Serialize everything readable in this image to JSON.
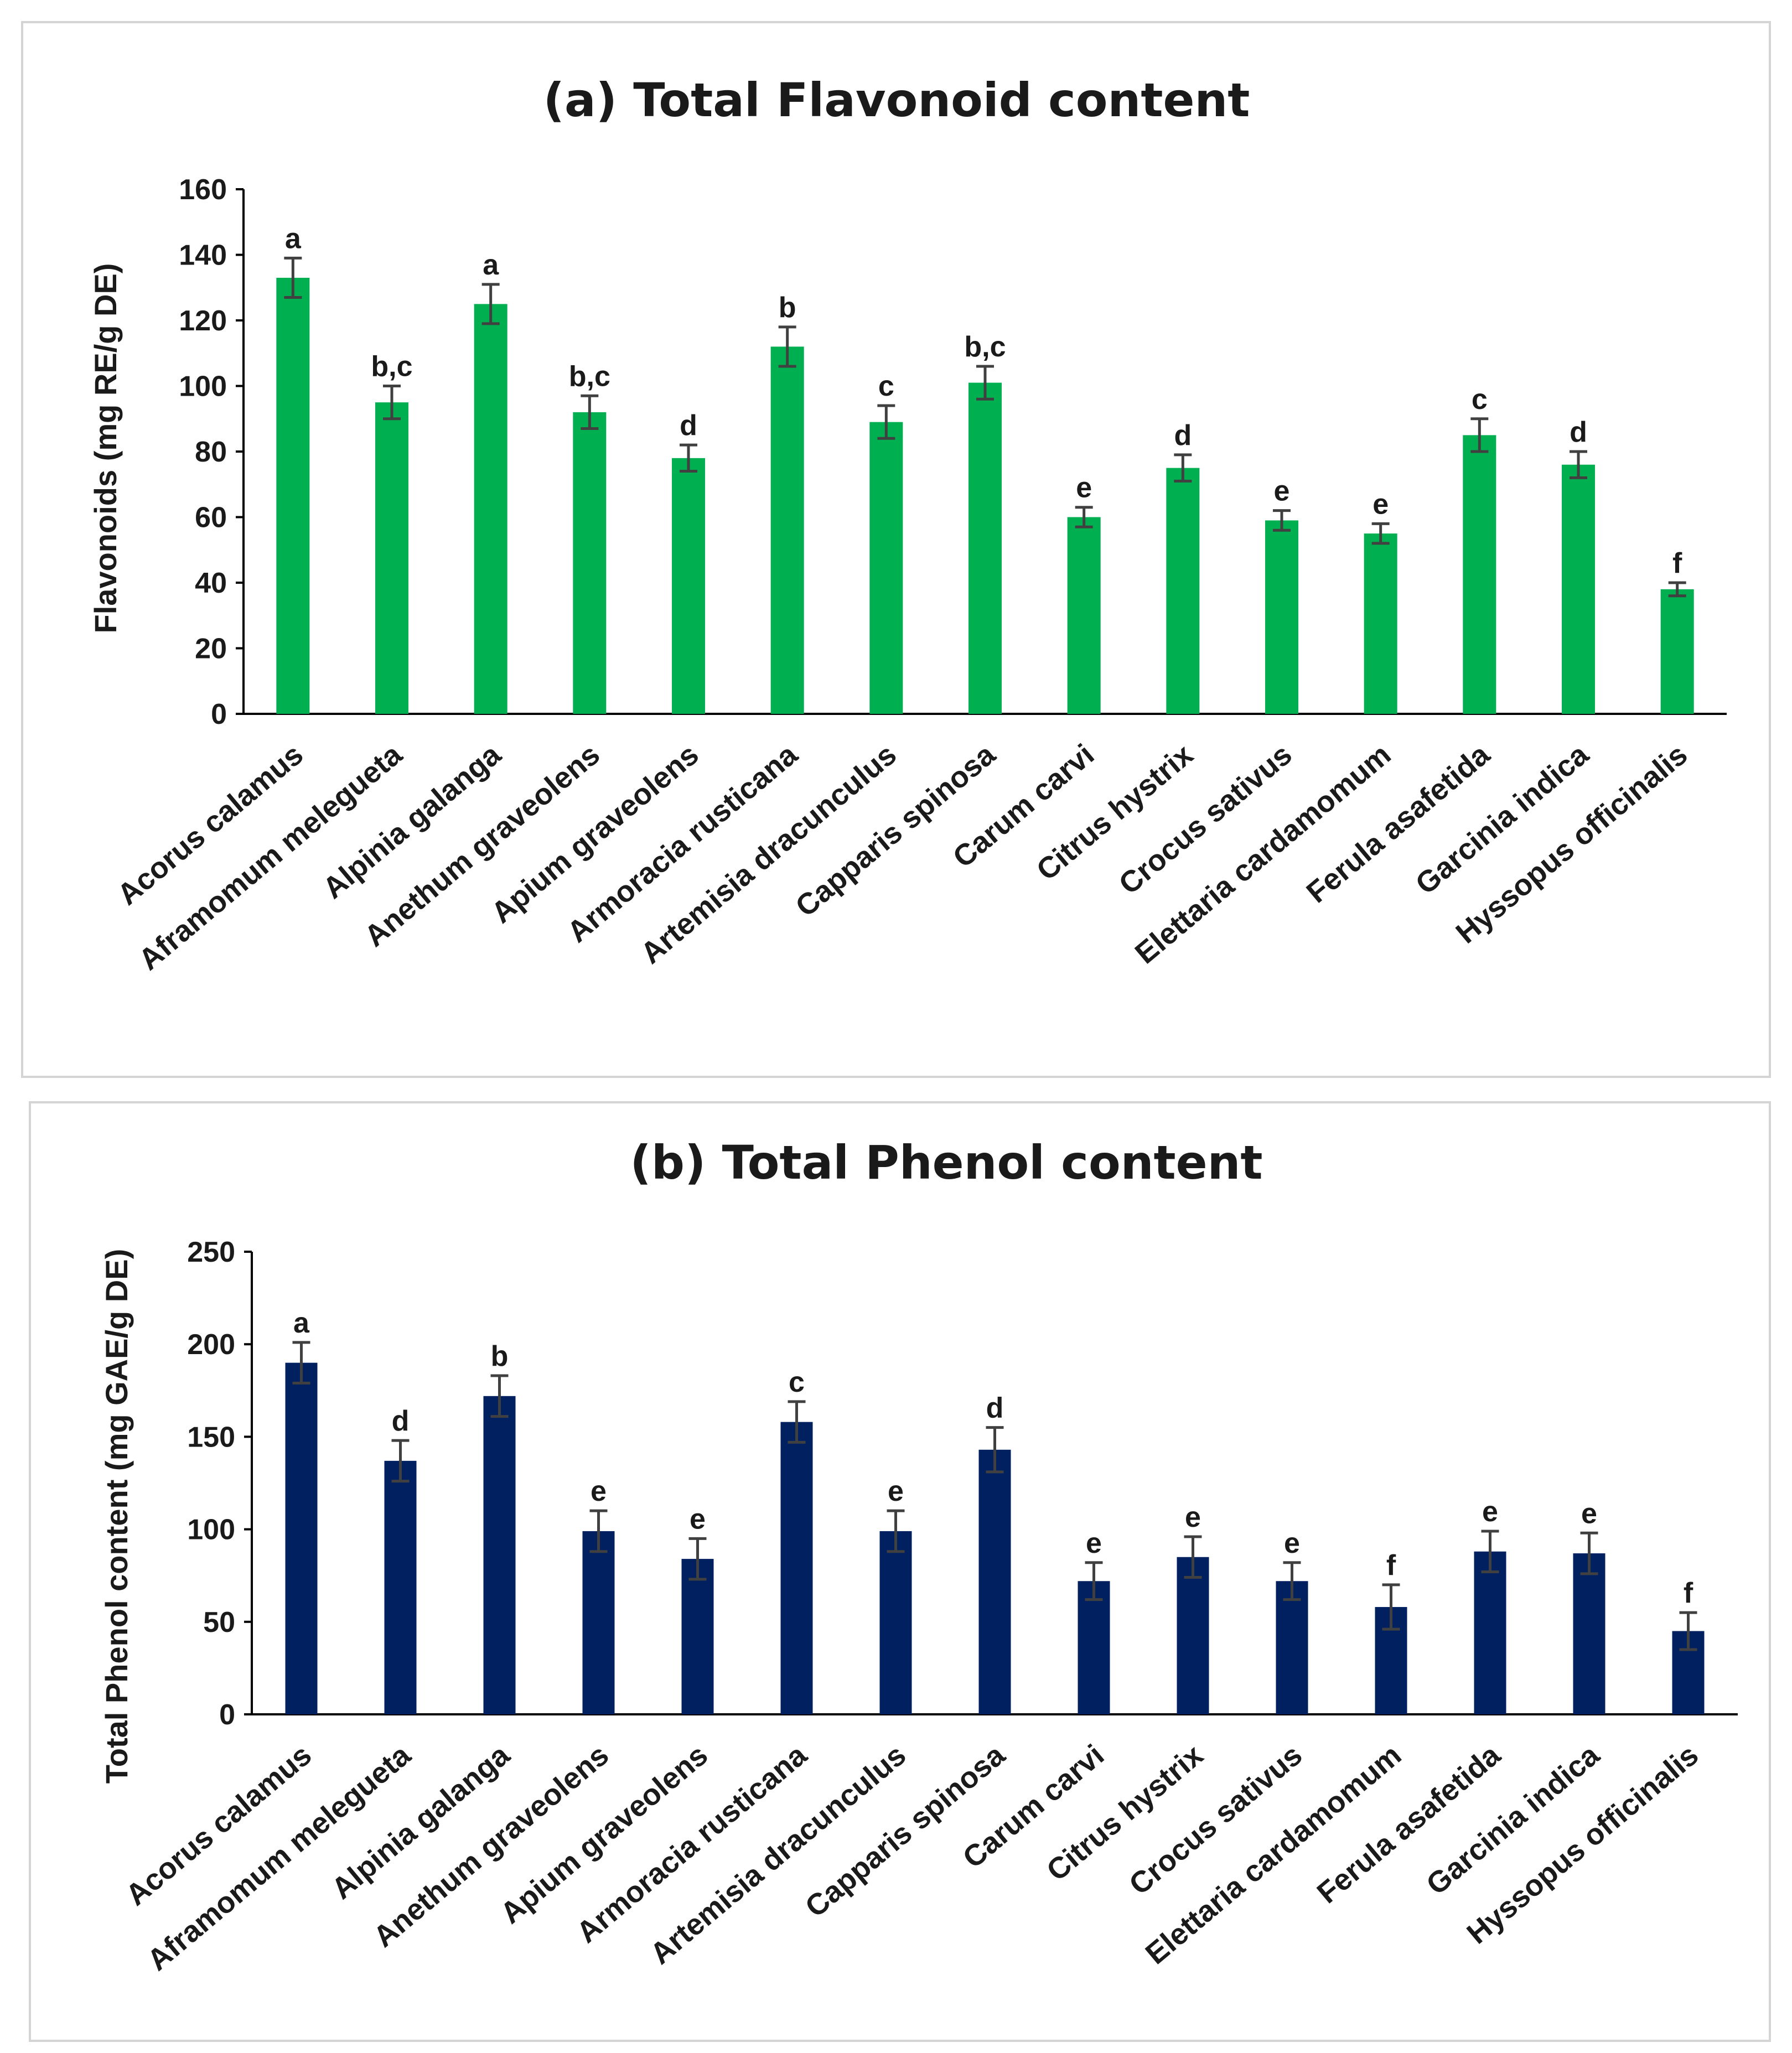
{
  "chart_data": [
    {
      "type": "bar",
      "title": "(a) Total Flavonoid content",
      "xlabel": "",
      "ylabel": "Flavonoids (mg RE/g DE)",
      "ylim": [
        0,
        160
      ],
      "yticks": [
        0,
        20,
        40,
        60,
        80,
        100,
        120,
        140,
        160
      ],
      "color": "#00b050",
      "categories": [
        "Acorus calamus",
        "Aframomum melegueta",
        "Alpinia galanga",
        "Anethum graveolens",
        "Apium graveolens",
        "Armoracia rusticana",
        "Artemisia dracunculus",
        "Capparis spinosa",
        "Carum carvi",
        "Citrus hystrix",
        "Crocus sativus",
        "Elettaria cardamomum",
        "Ferula asafetida",
        "Garcinia indica",
        "Hyssopus officinalis"
      ],
      "values": [
        133,
        95,
        125,
        92,
        78,
        112,
        89,
        101,
        60,
        75,
        59,
        55,
        85,
        76,
        38
      ],
      "errors": [
        6,
        5,
        6,
        5,
        4,
        6,
        5,
        5,
        3,
        4,
        3,
        3,
        5,
        4,
        2
      ],
      "significance": [
        "a",
        "b,c",
        "a",
        "b,c",
        "d",
        "b",
        "c",
        "b,c",
        "e",
        "d",
        "e",
        "e",
        "c",
        "d",
        "f"
      ]
    },
    {
      "type": "bar",
      "title": "(b) Total Phenol content",
      "xlabel": "",
      "ylabel": "Total Phenol content (mg GAE/g DE)",
      "ylim": [
        0,
        250
      ],
      "yticks": [
        0,
        50,
        100,
        150,
        200,
        250
      ],
      "color": "#002060",
      "categories": [
        "Acorus calamus",
        "Aframomum melegueta",
        "Alpinia galanga",
        "Anethum graveolens",
        "Apium graveolens",
        "Armoracia rusticana",
        "Artemisia dracunculus",
        "Capparis spinosa",
        "Carum carvi",
        "Citrus hystrix",
        "Crocus sativus",
        "Elettaria cardamomum",
        "Ferula asafetida",
        "Garcinia indica",
        "Hyssopus officinalis"
      ],
      "values": [
        190,
        137,
        172,
        99,
        84,
        158,
        99,
        143,
        72,
        85,
        72,
        58,
        88,
        87,
        45
      ],
      "errors": [
        11,
        11,
        11,
        11,
        11,
        11,
        11,
        12,
        10,
        11,
        10,
        12,
        11,
        11,
        10
      ],
      "significance": [
        "a",
        "d",
        "b",
        "e",
        "e",
        "c",
        "e",
        "d",
        "e",
        "e",
        "e",
        "f",
        "e",
        "e",
        "f"
      ]
    }
  ]
}
